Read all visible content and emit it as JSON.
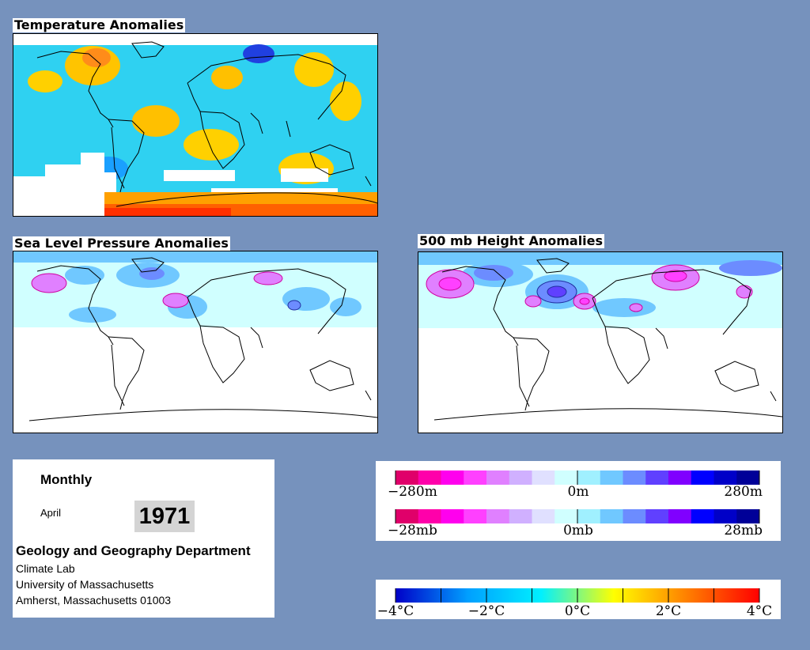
{
  "maps": {
    "temperature": {
      "title": "Temperature Anomalies"
    },
    "pressure": {
      "title": "Sea Level Pressure Anomalies"
    },
    "height": {
      "title": "500 mb Height Anomalies"
    }
  },
  "info": {
    "period": "Monthly",
    "month": "April",
    "year": "1971",
    "department": "Geology and Geography Department",
    "address": [
      "Climate Lab",
      "University of Massachusetts",
      "Amherst, Massachusetts 01003"
    ]
  },
  "legend_pink_blue": {
    "colors": [
      "#e0006a",
      "#ff00aa",
      "#ff00ee",
      "#ff40ff",
      "#e080ff",
      "#d0b0ff",
      "#e0e0ff",
      "#d0ffff",
      "#a0f0ff",
      "#70c8ff",
      "#6c8cff",
      "#6040ff",
      "#8000ff",
      "#0000ff",
      "#0000c8",
      "#000098"
    ],
    "height_labels": [
      "−280m",
      "0m",
      "280m"
    ],
    "pressure_labels": [
      "−28mb",
      "0mb",
      "28mb"
    ]
  },
  "legend_temperature": {
    "gradient": [
      "#0000c8",
      "#00a0ff",
      "#00f0ff",
      "#ffff00",
      "#ff8000",
      "#ff0000"
    ],
    "labels": [
      "−4°C",
      "−2°C",
      "0°C",
      "2°C",
      "4°C"
    ]
  }
}
